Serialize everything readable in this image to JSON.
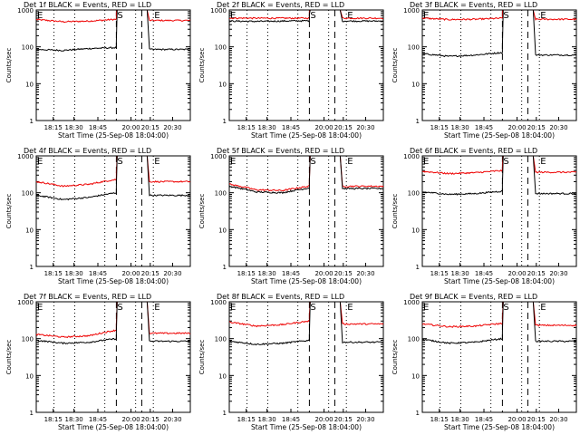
{
  "colors": {
    "events": "#000000",
    "lld": "#ee0000"
  },
  "common": {
    "xlabel": "Start Time (25-Sep-08 18:04:00)",
    "ylabel": "Counts/sec",
    "y_ticks": [
      "1",
      "10",
      "100",
      "1000"
    ],
    "x_ticks": [
      "18:15",
      "18:30",
      "18:45",
      "20:00",
      "20:15",
      "20:30"
    ],
    "markers": [
      "E",
      "S",
      "E"
    ]
  },
  "chart_data": [
    {
      "type": "line",
      "title": "Det 1f BLACK = Events, RED = LLD",
      "yscale": "log",
      "ylim": [
        1,
        1000
      ],
      "xlabel": "Start Time (25-Sep-08 18:04:00)",
      "ylabel": "Counts/sec",
      "series": [
        {
          "name": "LLD",
          "color": "#ee0000",
          "pre": [
            550,
            480,
            500,
            560
          ],
          "post": 520
        },
        {
          "name": "Events",
          "color": "#000000",
          "pre": [
            85,
            80,
            90,
            95
          ],
          "post": 85
        }
      ]
    },
    {
      "type": "line",
      "title": "Det 2f BLACK = Events, RED = LLD",
      "yscale": "log",
      "ylim": [
        1,
        1000
      ],
      "xlabel": "Start Time (25-Sep-08 18:04:00)",
      "ylabel": "Counts/sec",
      "series": [
        {
          "name": "LLD",
          "color": "#ee0000",
          "pre": [
            600,
            600,
            600,
            600
          ],
          "post": 600
        },
        {
          "name": "Events",
          "color": "#000000",
          "pre": [
            500,
            490,
            500,
            510
          ],
          "post": 500
        }
      ]
    },
    {
      "type": "line",
      "title": "Det 3f BLACK = Events, RED = LLD",
      "yscale": "log",
      "ylim": [
        1,
        1000
      ],
      "xlabel": "Start Time (25-Sep-08 18:04:00)",
      "ylabel": "Counts/sec",
      "series": [
        {
          "name": "LLD",
          "color": "#ee0000",
          "pre": [
            600,
            550,
            560,
            600
          ],
          "post": 560
        },
        {
          "name": "Events",
          "color": "#000000",
          "pre": [
            65,
            55,
            60,
            70
          ],
          "post": 60
        }
      ]
    },
    {
      "type": "line",
      "title": "Det 4f BLACK = Events, RED = LLD",
      "yscale": "log",
      "ylim": [
        1,
        1000
      ],
      "xlabel": "Start Time (25-Sep-08 18:04:00)",
      "ylabel": "Counts/sec",
      "series": [
        {
          "name": "LLD",
          "color": "#ee0000",
          "pre": [
            200,
            150,
            170,
            230
          ],
          "post": 200
        },
        {
          "name": "Events",
          "color": "#000000",
          "pre": [
            85,
            65,
            75,
            100
          ],
          "post": 85
        }
      ]
    },
    {
      "type": "line",
      "title": "Det 5f BLACK = Events, RED = LLD",
      "yscale": "log",
      "ylim": [
        1,
        1000
      ],
      "xlabel": "Start Time (25-Sep-08 18:04:00)",
      "ylabel": "Counts/sec",
      "series": [
        {
          "name": "LLD",
          "color": "#ee0000",
          "pre": [
            170,
            120,
            115,
            150
          ],
          "post": 150
        },
        {
          "name": "Events",
          "color": "#000000",
          "pre": [
            150,
            105,
            100,
            135
          ],
          "post": 130
        }
      ]
    },
    {
      "type": "line",
      "title": "Det 6f BLACK = Events, RED = LLD",
      "yscale": "log",
      "ylim": [
        1,
        1000
      ],
      "xlabel": "Start Time (25-Sep-08 18:04:00)",
      "ylabel": "Counts/sec",
      "series": [
        {
          "name": "LLD",
          "color": "#ee0000",
          "pre": [
            380,
            330,
            350,
            400
          ],
          "post": 360
        },
        {
          "name": "Events",
          "color": "#000000",
          "pre": [
            105,
            90,
            95,
            110
          ],
          "post": 95
        }
      ]
    },
    {
      "type": "line",
      "title": "Det 7f BLACK = Events, RED = LLD",
      "yscale": "log",
      "ylim": [
        1,
        1000
      ],
      "xlabel": "Start Time (25-Sep-08 18:04:00)",
      "ylabel": "Counts/sec",
      "series": [
        {
          "name": "LLD",
          "color": "#ee0000",
          "pre": [
            130,
            110,
            120,
            170
          ],
          "post": 140
        },
        {
          "name": "Events",
          "color": "#000000",
          "pre": [
            90,
            75,
            80,
            100
          ],
          "post": 85
        }
      ]
    },
    {
      "type": "line",
      "title": "Det 8f BLACK = Events, RED = LLD",
      "yscale": "log",
      "ylim": [
        1,
        1000
      ],
      "xlabel": "Start Time (25-Sep-08 18:04:00)",
      "ylabel": "Counts/sec",
      "series": [
        {
          "name": "LLD",
          "color": "#ee0000",
          "pre": [
            280,
            220,
            240,
            300
          ],
          "post": 250
        },
        {
          "name": "Events",
          "color": "#000000",
          "pre": [
            85,
            70,
            75,
            90
          ],
          "post": 80
        }
      ]
    },
    {
      "type": "line",
      "title": "Det 9f BLACK = Events, RED = LLD",
      "yscale": "log",
      "ylim": [
        1,
        1000
      ],
      "xlabel": "Start Time (25-Sep-08 18:04:00)",
      "ylabel": "Counts/sec",
      "series": [
        {
          "name": "LLD",
          "color": "#ee0000",
          "pre": [
            250,
            210,
            220,
            260
          ],
          "post": 230
        },
        {
          "name": "Events",
          "color": "#000000",
          "pre": [
            95,
            75,
            80,
            100
          ],
          "post": 85
        }
      ]
    }
  ]
}
